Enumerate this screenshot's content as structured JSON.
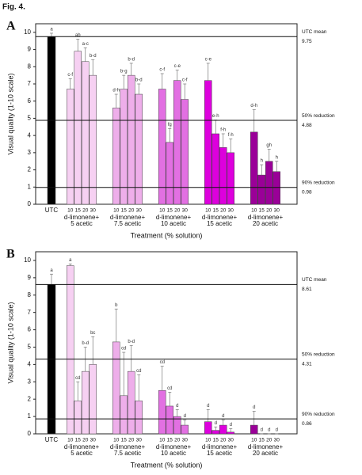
{
  "figure_title": "Fig. 4.",
  "chart_data": [
    {
      "type": "bar",
      "panel": "A",
      "ylabel": "Visual quality (1-10 scale)",
      "xlabel": "Treatment (% solution)",
      "ylim": [
        0,
        10.5
      ],
      "yticks": [
        0,
        1,
        2,
        3,
        4,
        5,
        6,
        7,
        8,
        9,
        10
      ],
      "categories": [
        "UTC",
        "10",
        "15",
        "20",
        "30",
        "10",
        "15",
        "20",
        "30",
        "10",
        "15",
        "20",
        "30",
        "10",
        "15",
        "20",
        "30",
        "10",
        "15",
        "20",
        "30"
      ],
      "group_labels": [
        [
          "d-limonene+",
          "5 acetic"
        ],
        [
          "d-limonene+",
          "7.5 acetic"
        ],
        [
          "d-limonene+",
          "10 acetic"
        ],
        [
          "d-limonene+",
          "15 acetic"
        ],
        [
          "d-limonene+",
          "20 acetic"
        ]
      ],
      "values": [
        9.75,
        6.7,
        8.9,
        8.3,
        7.5,
        5.6,
        6.7,
        7.5,
        6.4,
        6.7,
        3.6,
        7.2,
        6.1,
        7.2,
        4.1,
        3.3,
        3.0,
        4.2,
        1.7,
        2.5,
        1.9
      ],
      "errors": [
        0.2,
        0.6,
        0.7,
        0.8,
        0.9,
        0.8,
        0.8,
        0.7,
        0.6,
        0.9,
        0.8,
        0.6,
        0.9,
        1.0,
        0.8,
        0.8,
        0.8,
        1.3,
        0.6,
        0.7,
        0.6
      ],
      "annotations": [
        "a",
        "c-f",
        "ab",
        "a-c",
        "b-d",
        "d-h",
        "b-g",
        "b-d",
        "b-d",
        "c-f",
        "fg",
        "c-e",
        "c-f",
        "c-e",
        "e-h",
        "f-h",
        "f-h",
        "d-h",
        "h",
        "gh",
        "h"
      ],
      "colors": [
        "#000000",
        "#f6d0f2",
        "#f6d0f2",
        "#f6d0f2",
        "#f6d0f2",
        "#eeaeea",
        "#eeaeea",
        "#eeaeea",
        "#eeaeea",
        "#e270e2",
        "#e270e2",
        "#e270e2",
        "#e270e2",
        "#dd00dd",
        "#dd00dd",
        "#dd00dd",
        "#dd00dd",
        "#9a0098",
        "#9a0098",
        "#9a0098",
        "#9a0098"
      ],
      "reference_lines": [
        {
          "label": "UTC mean",
          "value": 9.75
        },
        {
          "label": "50% reduction",
          "value": 4.88
        },
        {
          "label": "90% reduction",
          "value": 0.98
        }
      ]
    },
    {
      "type": "bar",
      "panel": "B",
      "ylabel": "Visual quality (1-10 scale)",
      "xlabel": "Treatment (% solution)",
      "ylim": [
        0,
        10.5
      ],
      "yticks": [
        0,
        1,
        2,
        3,
        4,
        5,
        6,
        7,
        8,
        9,
        10
      ],
      "categories": [
        "UTC",
        "10",
        "15",
        "20",
        "30",
        "10",
        "15",
        "20",
        "30",
        "10",
        "15",
        "20",
        "30",
        "10",
        "15",
        "20",
        "30",
        "10",
        "15",
        "20",
        "30"
      ],
      "group_labels": [
        [
          "d-limonene+",
          "5 acetic"
        ],
        [
          "d-limonene+",
          "7.5 acetic"
        ],
        [
          "d-limonene+",
          "10 acetic"
        ],
        [
          "d-limonene+",
          "15 acetic"
        ],
        [
          "d-limonene+",
          "20 acetic"
        ]
      ],
      "values": [
        8.61,
        9.7,
        1.9,
        3.6,
        4.0,
        5.3,
        2.2,
        3.6,
        1.9,
        2.5,
        1.6,
        1.0,
        0.5,
        0.7,
        0.2,
        0.5,
        0.1,
        0.5,
        0,
        0,
        0
      ],
      "errors": [
        0.6,
        0.1,
        1.1,
        1.4,
        1.6,
        1.9,
        2.5,
        1.5,
        1.5,
        1.4,
        0.8,
        0.4,
        0.3,
        0.7,
        0.2,
        0.3,
        0.2,
        0.8,
        0,
        0,
        0
      ],
      "annotations": [
        "a",
        "a",
        "cd",
        "b-d",
        "bc",
        "b",
        "cd",
        "b-d",
        "cd",
        "cd",
        "cd",
        "d",
        "d",
        "d",
        "d",
        "d",
        "d",
        "d",
        "d",
        "d",
        "d"
      ],
      "colors": [
        "#000000",
        "#f6d0f2",
        "#f6d0f2",
        "#f6d0f2",
        "#f6d0f2",
        "#eeaeea",
        "#eeaeea",
        "#eeaeea",
        "#eeaeea",
        "#e270e2",
        "#e270e2",
        "#e270e2",
        "#e270e2",
        "#dd00dd",
        "#dd00dd",
        "#dd00dd",
        "#dd00dd",
        "#9a0098",
        "#9a0098",
        "#9a0098",
        "#9a0098"
      ],
      "reference_lines": [
        {
          "label": "UTC mean",
          "value": 8.61
        },
        {
          "label": "50% reduction",
          "value": 4.31
        },
        {
          "label": "90% reduction",
          "value": 0.86
        }
      ]
    }
  ]
}
